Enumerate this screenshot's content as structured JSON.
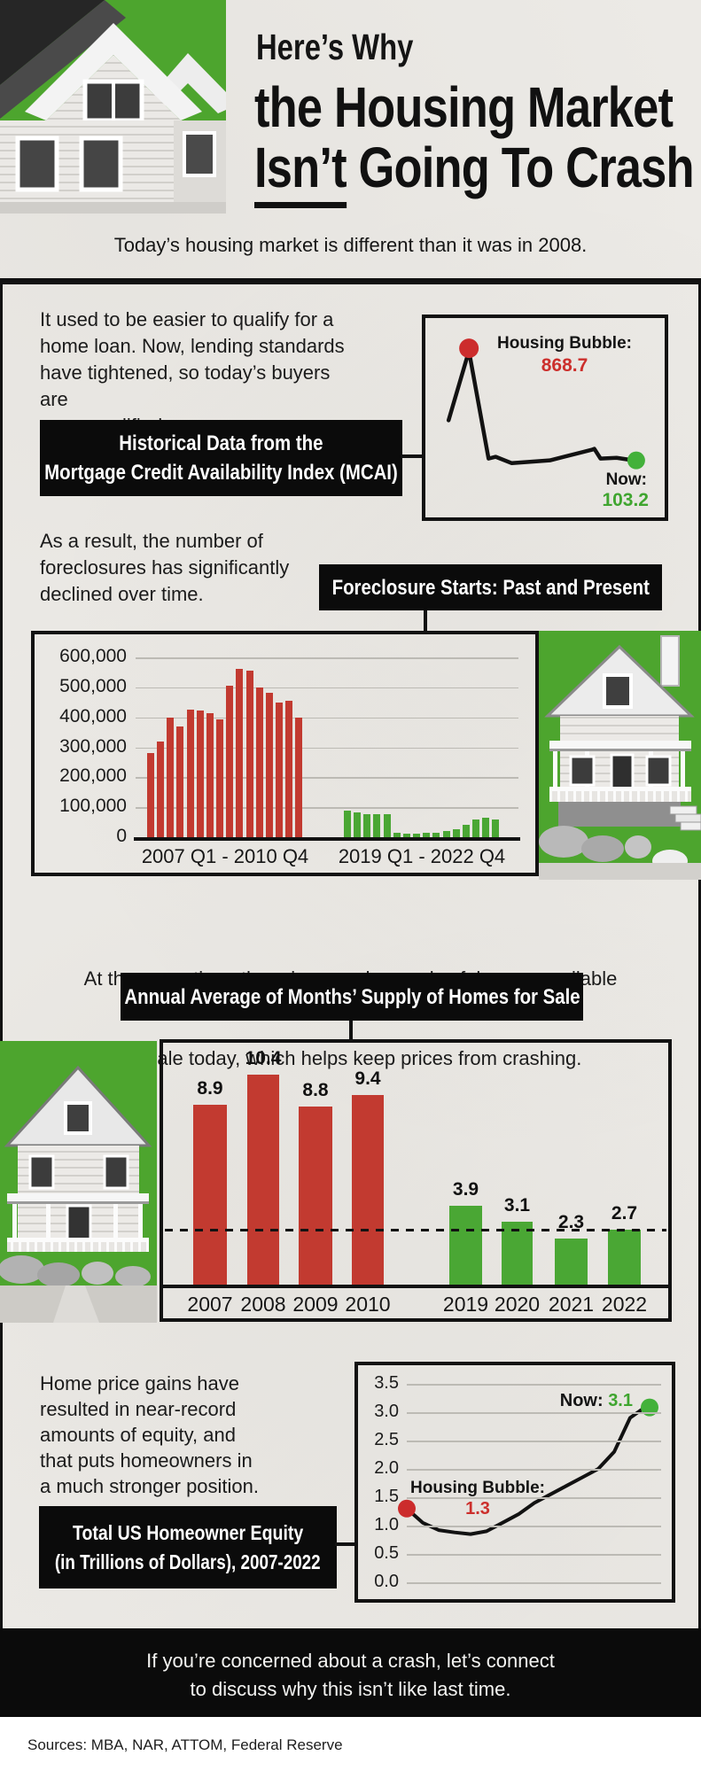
{
  "theme": {
    "paper": "#edebe7",
    "ink": "#121212",
    "green_bg": "#4da52e",
    "bar_red": "#c23a30",
    "bar_green": "#4aa734",
    "callout_red": "#cc2f2c",
    "callout_green": "#3fa52f",
    "dot_red": "#cc2c2c",
    "dot_green": "#43b13a"
  },
  "header": {
    "title_line1": "Here’s Why",
    "title_line2": "the Housing Market",
    "title_line3_underlined": "Isn’t",
    "title_line3_rest": " Going To Crash",
    "subtitle": "Today’s housing market is different than it was in 2008."
  },
  "mcai": {
    "paragraph": [
      "It used to be easier to qualify for a",
      "home loan. Now, lending standards",
      "have tightened, so today’s buyers are",
      "more qualified."
    ],
    "label": [
      "Historical Data from the",
      "Mortgage Credit Availability Index (MCAI)"
    ]
  },
  "foreclosure": {
    "paragraph": [
      "As a result, the number of",
      "foreclosures has significantly",
      "declined over time."
    ],
    "label": "Foreclosure Starts: Past and Present"
  },
  "supply": {
    "paragraph": [
      "At the same time, there is an undersupply of  homes available",
      "for sale today, which helps keep prices from crashing."
    ],
    "label": "Annual Average of Months’ Supply of Homes for Sale"
  },
  "equity": {
    "paragraph": [
      "Home price gains have",
      "resulted in near-record",
      "amounts of equity, and",
      "that puts homeowners in",
      "a much stronger position."
    ],
    "label": [
      "Total US Homeowner Equity",
      "(in Trillions of Dollars), 2007-2022"
    ]
  },
  "footer": {
    "lines": [
      "If you’re concerned about a crash, let’s connect",
      "to discuss why this isn’t like last time."
    ]
  },
  "sources": {
    "text": "Sources: MBA, NAR, ATTOM, Federal Reserve"
  },
  "chart_data": [
    {
      "id": "mcai",
      "type": "line",
      "title": "Historical Data from the Mortgage Credit Availability Index (MCAI)",
      "annotations": {
        "peak_label": "Housing Bubble:",
        "peak_value": "868.7",
        "now_label": "Now:",
        "now_value": "103.2"
      },
      "peak_index": 1,
      "polyline_pct": [
        [
          9.7,
          51.3
        ],
        [
          18.2,
          16.5
        ],
        [
          26.4,
          70.5
        ],
        [
          29.4,
          69.6
        ],
        [
          36.1,
          72.8
        ],
        [
          52.0,
          71.4
        ],
        [
          69.5,
          66.1
        ],
        [
          70.6,
          65.6
        ],
        [
          73.2,
          70.5
        ],
        [
          79.9,
          70.1
        ],
        [
          87.0,
          71.4
        ]
      ],
      "axes_shown": false
    },
    {
      "id": "foreclosure",
      "type": "bar",
      "title": "Foreclosure Starts: Past and Present",
      "ylim": [
        0,
        600000
      ],
      "grid": true,
      "yticks": [
        {
          "label": "600,000",
          "value": 600000
        },
        {
          "label": "500,000",
          "value": 500000
        },
        {
          "label": "400,000",
          "value": 400000
        },
        {
          "label": "300,000",
          "value": 300000
        },
        {
          "label": "200,000",
          "value": 200000
        },
        {
          "label": "100,000",
          "value": 100000
        },
        {
          "label": "0",
          "value": 0
        }
      ],
      "group_labels": [
        "2007 Q1 - 2010 Q4",
        "2019 Q1 - 2022 Q4"
      ],
      "series": [
        {
          "name": "2007 Q1 - 2010 Q4",
          "color": "red",
          "values": [
            280000,
            318000,
            400000,
            368000,
            425000,
            423000,
            415000,
            393000,
            505000,
            562000,
            556000,
            500000,
            482000,
            450000,
            455000,
            400000
          ]
        },
        {
          "name": "2019 Q1 - 2022 Q4",
          "color": "green",
          "values": [
            90000,
            82000,
            76000,
            78000,
            78000,
            14000,
            12000,
            13000,
            14000,
            15000,
            20000,
            26000,
            42000,
            60000,
            64000,
            58000
          ]
        }
      ]
    },
    {
      "id": "supply",
      "type": "bar",
      "title": "Annual Average of Months’ Supply of Homes for Sale",
      "categories": [
        "2007",
        "2008",
        "2009",
        "2010",
        "2019",
        "2020",
        "2021",
        "2022"
      ],
      "values": [
        8.9,
        10.4,
        8.8,
        9.4,
        3.9,
        3.1,
        2.3,
        2.7
      ],
      "value_labels": [
        "8.9",
        "10.4",
        "8.8",
        "9.4",
        "3.9",
        "3.1",
        "2.3",
        "2.7"
      ],
      "bar_colors": [
        "red",
        "red",
        "red",
        "red",
        "green",
        "green",
        "green",
        "green"
      ],
      "reference_line_value": 2.7,
      "ylim": [
        0,
        11
      ]
    },
    {
      "id": "equity",
      "type": "line",
      "title": "Total US Homeowner Equity (in Trillions of Dollars), 2007-2022",
      "x_years": [
        2007,
        2008,
        2009,
        2010,
        2011,
        2012,
        2013,
        2014,
        2015,
        2016,
        2017,
        2018,
        2019,
        2020,
        2021,
        2022
      ],
      "values_est": [
        1.3,
        1.05,
        0.92,
        0.88,
        0.85,
        0.9,
        1.05,
        1.2,
        1.4,
        1.55,
        1.7,
        1.85,
        2.0,
        2.3,
        2.9,
        3.1
      ],
      "yticks": [
        "3.5",
        "3.0",
        "2.5",
        "2.0",
        "1.5",
        "1.0",
        "0.5",
        "0.0"
      ],
      "ylim": [
        0,
        3.5
      ],
      "grid": true,
      "annotations": {
        "bubble_label": "Housing Bubble:",
        "bubble_value": "1.3",
        "now_label": "Now: ",
        "now_value": "3.1"
      }
    }
  ]
}
